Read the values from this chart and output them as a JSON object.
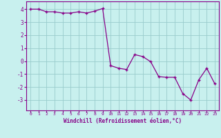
{
  "x": [
    0,
    1,
    2,
    3,
    4,
    5,
    6,
    7,
    8,
    9,
    10,
    11,
    12,
    13,
    14,
    15,
    16,
    17,
    18,
    19,
    20,
    21,
    22,
    23
  ],
  "y": [
    4.0,
    4.0,
    3.8,
    3.8,
    3.7,
    3.7,
    3.8,
    3.7,
    3.85,
    4.05,
    -0.35,
    -0.55,
    -0.65,
    0.5,
    0.35,
    -0.05,
    -1.2,
    -1.25,
    -1.25,
    -2.5,
    -3.0,
    -1.45,
    -0.55,
    -1.75
  ],
  "line_color": "#880088",
  "marker": "P",
  "marker_size": 2.5,
  "bg_color": "#c8f0ee",
  "grid_color": "#99cccc",
  "xlabel": "Windchill (Refroidissement éolien,°C)",
  "xlabel_color": "#880088",
  "tick_color": "#880088",
  "ylim": [
    -3.8,
    4.6
  ],
  "yticks": [
    -3,
    -2,
    -1,
    0,
    1,
    2,
    3,
    4
  ],
  "xticks": [
    0,
    1,
    2,
    3,
    4,
    5,
    6,
    7,
    8,
    9,
    10,
    11,
    12,
    13,
    14,
    15,
    16,
    17,
    18,
    19,
    20,
    21,
    22,
    23
  ]
}
